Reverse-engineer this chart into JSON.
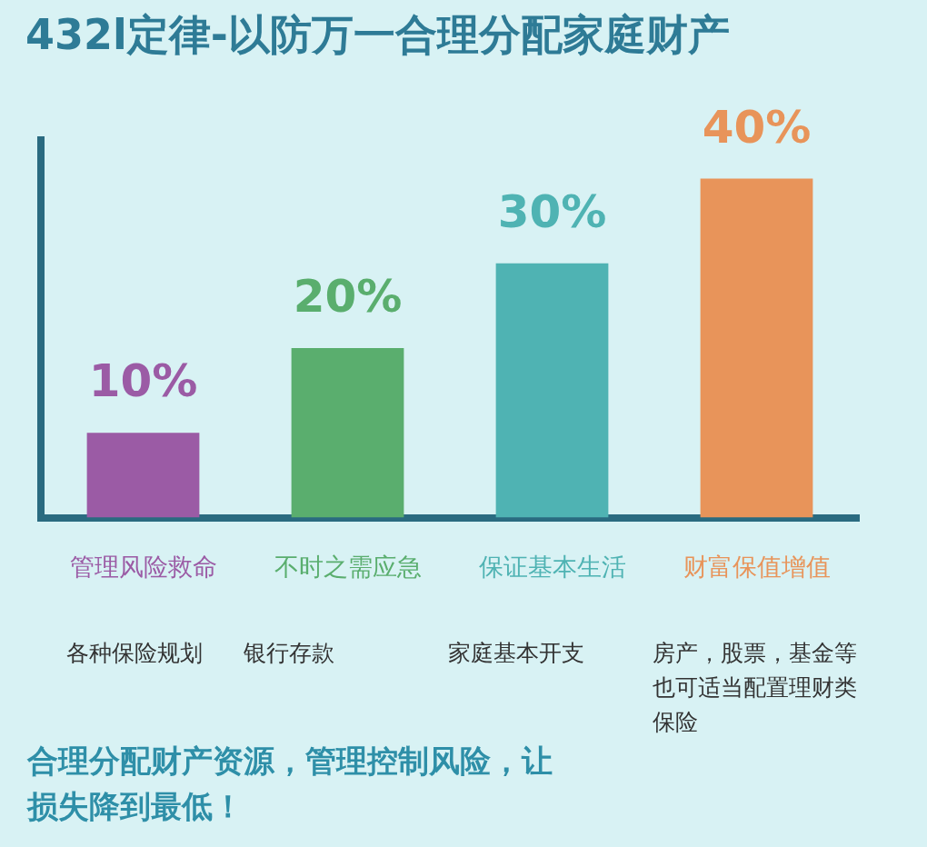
{
  "chart_data": {
    "type": "bar",
    "title": "432l定律-以防万一合理分配家庭财产",
    "categories": [
      "管理风险救命",
      "不时之需应急",
      "保证基本生活",
      "财富保值增值"
    ],
    "values": [
      10,
      20,
      30,
      40
    ],
    "colors": [
      "#9b5ba5",
      "#5aae6e",
      "#4fb3b3",
      "#e8945a"
    ],
    "value_labels": [
      "10%",
      "20%",
      "30%",
      "40%"
    ],
    "tick_labels": "x",
    "grid": false,
    "legend": false,
    "annotations": [
      "各种保险规划",
      "银行存款",
      "家庭基本开支",
      "房产，股票，基金等也可适当配置理财类保险",
      "合理分配财产资源，管理控制风险，让损失降到最低！"
    ]
  }
}
